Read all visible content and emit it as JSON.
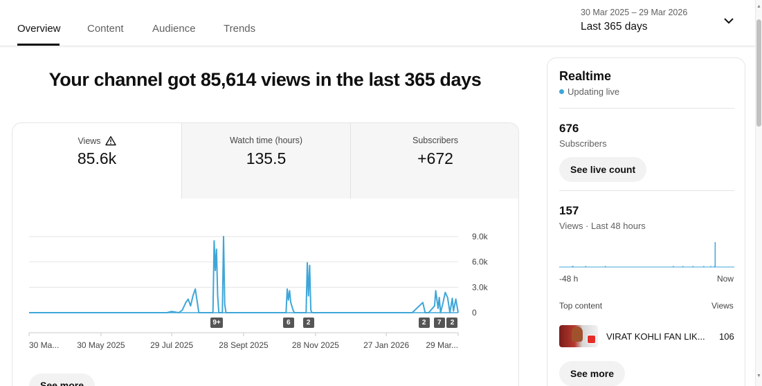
{
  "tabs": [
    {
      "label": "Overview",
      "active": true
    },
    {
      "label": "Content",
      "active": false
    },
    {
      "label": "Audience",
      "active": false
    },
    {
      "label": "Trends",
      "active": false
    }
  ],
  "date_picker": {
    "range": "30 Mar 2025 – 29 Mar 2026",
    "period": "Last 365 days"
  },
  "headline": "Your channel got 85,614 views in the last 365 days",
  "metrics": [
    {
      "label": "Views",
      "value": "85.6k",
      "warning_icon": "warning-triangle-icon"
    },
    {
      "label": "Watch time (hours)",
      "value": "135.5"
    },
    {
      "label": "Subscribers",
      "value": "+672"
    }
  ],
  "chart_data": {
    "type": "line",
    "x": [
      "2025-03-30",
      "2025-04-09",
      "2025-04-19",
      "2025-04-29",
      "2025-05-09",
      "2025-05-19",
      "2025-05-30",
      "2025-06-09",
      "2025-06-19",
      "2025-06-29",
      "2025-07-09",
      "2025-07-19",
      "2025-07-25",
      "2025-07-29",
      "2025-08-04",
      "2025-08-07",
      "2025-08-10",
      "2025-08-12",
      "2025-08-14",
      "2025-08-16",
      "2025-08-18",
      "2025-08-21",
      "2025-08-24",
      "2025-08-27",
      "2025-09-02",
      "2025-09-03",
      "2025-09-04",
      "2025-09-05",
      "2025-09-06",
      "2025-09-07",
      "2025-09-10",
      "2025-09-11",
      "2025-09-12",
      "2025-09-13",
      "2025-09-14",
      "2025-09-20",
      "2025-10-10",
      "2025-10-20",
      "2025-10-30",
      "2025-11-03",
      "2025-11-04",
      "2025-11-05",
      "2025-11-06",
      "2025-11-07",
      "2025-11-09",
      "2025-11-10",
      "2025-11-11",
      "2025-11-20",
      "2025-11-21",
      "2025-11-22",
      "2025-11-23",
      "2025-11-24",
      "2025-11-25",
      "2025-11-26",
      "2025-11-27",
      "2025-12-10",
      "2025-12-20",
      "2025-12-30",
      "2026-01-09",
      "2026-01-19",
      "2026-01-29",
      "2026-02-08",
      "2026-02-18",
      "2026-02-27",
      "2026-03-01",
      "2026-03-04",
      "2026-03-09",
      "2026-03-10",
      "2026-03-12",
      "2026-03-13",
      "2026-03-14",
      "2026-03-16",
      "2026-03-18",
      "2026-03-20",
      "2026-03-22",
      "2026-03-24",
      "2026-03-25",
      "2026-03-27",
      "2026-03-29"
    ],
    "y": [
      0,
      0,
      0,
      0,
      0,
      0,
      0,
      0,
      0,
      0,
      0,
      0,
      0,
      150,
      0,
      300,
      1200,
      1600,
      800,
      2000,
      2800,
      0,
      0,
      0,
      0,
      8500,
      5000,
      7500,
      2000,
      0,
      0,
      9000,
      1000,
      0,
      0,
      0,
      0,
      0,
      0,
      0,
      2800,
      1500,
      2600,
      1200,
      300,
      0,
      0,
      0,
      5900,
      2000,
      5600,
      300,
      0,
      0,
      0,
      0,
      0,
      0,
      0,
      0,
      0,
      0,
      0,
      1200,
      0,
      0,
      800,
      2600,
      500,
      1800,
      0,
      1100,
      2400,
      1800,
      0,
      1700,
      200,
      1600,
      0
    ],
    "xlabel": "",
    "ylabel": "",
    "ylim": [
      0,
      9000
    ],
    "yticks": [
      "9.0k",
      "6.0k",
      "3.0k",
      "0"
    ],
    "xtick_labels": [
      "30 Ma...",
      "30 May 2025",
      "29 Jul 2025",
      "28 Sept 2025",
      "28 Nov 2025",
      "27 Jan 2026",
      "29 Mar..."
    ],
    "xtick_dates": [
      "2025-03-30",
      "2025-05-30",
      "2025-07-29",
      "2025-09-28",
      "2025-11-28",
      "2026-01-27",
      "2026-03-29"
    ],
    "annotations": [
      {
        "label": "9+",
        "date": "2025-09-05"
      },
      {
        "label": "6",
        "date": "2025-11-05"
      },
      {
        "label": "2",
        "date": "2025-11-22"
      },
      {
        "label": "2",
        "date": "2026-02-28"
      },
      {
        "label": "7",
        "date": "2026-03-13"
      },
      {
        "label": "2",
        "date": "2026-03-24"
      }
    ],
    "grid": true,
    "color": "#3ea6d8"
  },
  "see_more_left": "See more",
  "realtime": {
    "title": "Realtime",
    "live": "Updating live",
    "subscribers": {
      "value": "676",
      "label": "Subscribers",
      "button": "See live count"
    },
    "views": {
      "value": "157",
      "label": "Views · Last 48 hours"
    },
    "mini_chart": {
      "x_start": "-48 h",
      "x_end": "Now",
      "values": [
        0,
        0,
        0,
        0,
        0,
        0,
        0,
        0,
        0,
        0,
        0,
        0,
        0,
        0,
        0,
        0,
        0,
        0,
        0,
        0,
        1,
        1,
        0,
        0,
        0,
        0,
        0,
        0,
        0,
        0,
        0,
        0,
        0,
        0,
        0,
        0,
        0,
        0,
        0,
        0,
        0,
        1,
        0,
        0,
        0,
        0,
        0,
        0,
        0,
        0,
        0,
        0,
        0,
        0,
        0,
        0,
        0,
        0,
        0,
        0,
        0,
        0,
        0,
        0,
        0,
        0,
        0,
        0,
        0,
        0,
        0,
        0,
        1,
        0,
        0,
        0,
        0,
        0,
        0,
        0,
        0,
        0,
        0,
        0,
        0,
        0,
        0,
        0,
        0,
        0,
        0,
        0,
        0,
        0,
        0,
        0,
        0,
        0,
        0,
        0,
        0,
        0,
        0,
        0,
        0,
        0,
        0,
        0,
        0,
        0,
        0,
        0,
        0,
        0,
        0,
        0,
        0,
        0,
        0,
        0,
        0,
        0,
        0,
        0,
        0,
        0,
        0,
        0,
        0,
        0,
        0,
        0,
        0,
        0,
        0,
        0,
        0,
        0,
        0,
        0,
        0,
        0,
        0,
        0,
        0,
        0,
        0,
        0,
        0,
        0,
        0,
        0,
        0,
        0,
        0,
        0,
        0,
        0,
        0,
        0,
        0,
        0,
        0,
        0,
        0,
        0,
        0,
        0,
        0,
        0,
        0,
        0,
        0,
        0,
        0,
        0,
        0,
        0,
        0,
        1,
        0,
        0,
        0,
        0,
        0,
        0,
        0,
        0,
        0,
        0,
        0,
        0,
        0,
        0,
        1,
        0,
        0,
        0,
        0,
        0,
        0,
        0,
        0,
        0,
        0,
        0,
        0,
        0,
        0,
        0,
        1,
        0,
        0,
        0,
        0,
        0,
        0,
        0,
        0,
        0,
        0,
        0,
        0,
        0,
        0,
        0,
        0,
        1,
        0,
        0,
        0,
        0,
        0,
        0,
        0,
        0,
        0,
        0,
        1,
        0,
        0,
        0,
        0,
        0,
        1,
        30,
        0,
        0,
        0,
        0,
        0,
        0,
        0,
        0,
        0,
        0,
        0,
        0,
        0,
        0,
        0,
        0,
        0,
        0,
        0,
        0,
        0,
        0,
        0,
        0,
        0,
        0,
        0,
        0,
        0,
        0
      ]
    },
    "top_content_label": "Top content",
    "top_content_views_label": "Views",
    "top_content": {
      "title": "VIRAT KOHLI FAN LIK...",
      "views": "106"
    },
    "see_more": "See more"
  }
}
